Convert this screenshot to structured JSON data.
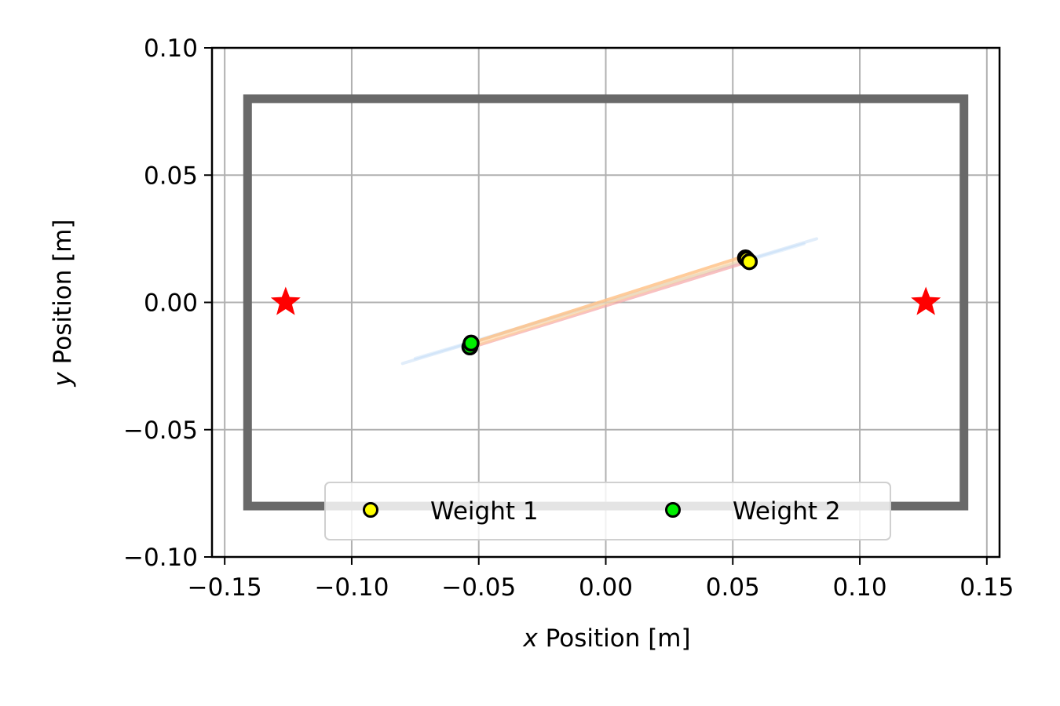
{
  "chart_data": {
    "type": "scatter",
    "title": "",
    "xlabel_var": "x",
    "xlabel_rest": " Position [m]",
    "ylabel_var": "y",
    "ylabel_rest": " Position [m]",
    "xlim": [
      -0.155,
      0.155
    ],
    "ylim": [
      -0.1,
      0.1
    ],
    "xticks": [
      -0.15,
      -0.1,
      -0.05,
      0.0,
      0.05,
      0.1,
      0.15
    ],
    "xtick_labels": [
      "−0.15",
      "−0.10",
      "−0.05",
      "0.00",
      "0.05",
      "0.10",
      "0.15"
    ],
    "yticks": [
      -0.1,
      -0.05,
      0.0,
      0.05,
      0.1
    ],
    "ytick_labels": [
      "−0.10",
      "−0.05",
      "0.00",
      "0.05",
      "0.10"
    ],
    "grid": true,
    "legend_position": "lower center",
    "legend_columns": 2,
    "boundary": {
      "x_range": [
        -0.141,
        0.141
      ],
      "y_range": [
        -0.08,
        0.08
      ],
      "color": "#696969"
    },
    "targets": [
      {
        "x": -0.126,
        "y": 0.0
      },
      {
        "x": 0.126,
        "y": 0.0
      }
    ],
    "target_color": "#ff0000",
    "trajectories": [
      {
        "x": [
          -0.08,
          0.083
        ],
        "y": [
          -0.024,
          0.025
        ],
        "color": "#a9ccf2",
        "opacity": 0.35
      },
      {
        "x": [
          -0.075,
          0.078
        ],
        "y": [
          -0.022,
          0.023
        ],
        "color": "#b7d6f5",
        "opacity": 0.35
      },
      {
        "x": [
          -0.054,
          0.056
        ],
        "y": [
          -0.018,
          0.016
        ],
        "color": "#f5a6a6",
        "opacity": 0.7
      },
      {
        "x": [
          -0.053,
          0.054
        ],
        "y": [
          -0.016,
          0.018
        ],
        "color": "#ffc389",
        "opacity": 0.85
      },
      {
        "x": [
          -0.052,
          0.055
        ],
        "y": [
          -0.017,
          0.017
        ],
        "color": "#ffd39a",
        "opacity": 0.6
      }
    ],
    "series": [
      {
        "name": "Weight 1",
        "color": "#ffff00",
        "points": [
          {
            "x": 0.055,
            "y": 0.0175
          },
          {
            "x": 0.0555,
            "y": 0.017
          },
          {
            "x": 0.0565,
            "y": 0.016
          }
        ]
      },
      {
        "name": "Weight 2",
        "color": "#00ee00",
        "points": [
          {
            "x": -0.0535,
            "y": -0.0175
          },
          {
            "x": -0.053,
            "y": -0.016
          }
        ]
      }
    ]
  }
}
